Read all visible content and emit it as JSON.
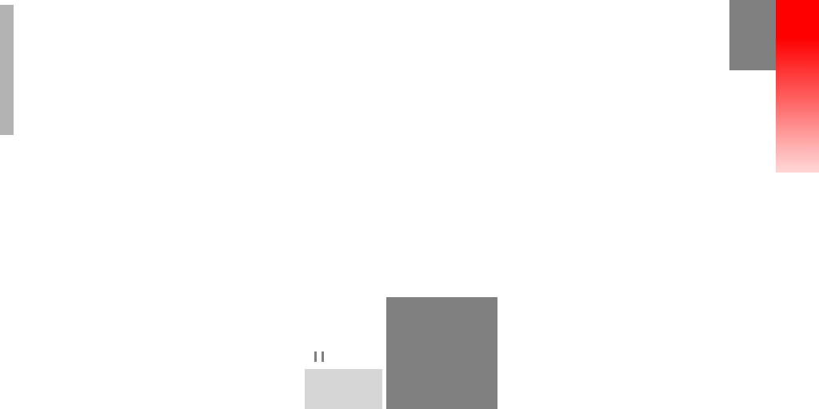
{
  "scene": {
    "background_color": "#ffffff"
  },
  "colors": {
    "gray_dark": "#808080",
    "gray_mid": "#b3b3b3",
    "gray_light": "#d6d6d6",
    "meter_red": "#ff0000"
  },
  "hud": {
    "pause_icon": "pause-icon"
  }
}
